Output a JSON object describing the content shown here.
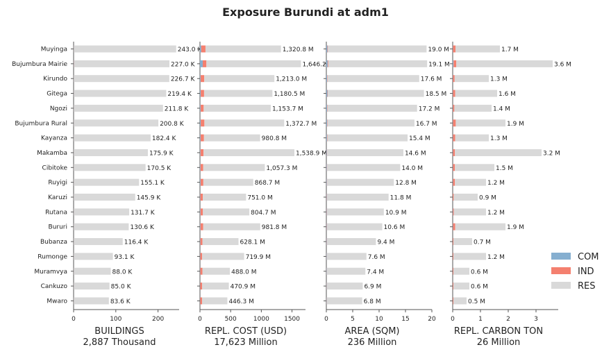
{
  "title": "Exposure Burundi at adm1",
  "chart_data": {
    "type": "bar",
    "orientation": "horizontal",
    "stacked": true,
    "categories": [
      "Muyinga",
      "Bujumbura Mairie",
      "Kirundo",
      "Gitega",
      "Ngozi",
      "Bujumbura Rural",
      "Kayanza",
      "Makamba",
      "Cibitoke",
      "Ruyigi",
      "Karuzi",
      "Rutana",
      "Bururi",
      "Bubanza",
      "Rumonge",
      "Muramvya",
      "Cankuzo",
      "Mwaro"
    ],
    "legend": {
      "position": "right",
      "entries": [
        {
          "name": "COM",
          "color": "#86afd0"
        },
        {
          "name": "IND",
          "color": "#f4806f"
        },
        {
          "name": "RES",
          "color": "#d9d9d9"
        }
      ]
    },
    "panels": [
      {
        "xlabel": "BUILDINGS",
        "total": "2,887 Thousand",
        "xlim": [
          0,
          250
        ],
        "xticks": [
          0,
          100,
          200
        ],
        "labels": [
          "243.0 K",
          "227.0 K",
          "226.7 K",
          "219.4 K",
          "211.8 K",
          "200.8 K",
          "182.4 K",
          "175.9 K",
          "170.5 K",
          "155.1 K",
          "145.9 K",
          "131.7 K",
          "130.6 K",
          "116.4 K",
          "93.1 K",
          "88.0 K",
          "85.0 K",
          "83.6 K"
        ],
        "series": [
          {
            "name": "COM",
            "values": [
              0.3,
              0.5,
              0.2,
              0.3,
              0.3,
              0.2,
              0.2,
              0.2,
              0.2,
              0.2,
              0.2,
              0.2,
              0.2,
              0.2,
              0.2,
              0.2,
              0.2,
              0.2
            ]
          },
          {
            "name": "IND",
            "values": [
              0.2,
              0.4,
              0.2,
              0.2,
              0.2,
              0.2,
              0.2,
              0.2,
              0.2,
              0.2,
              0.2,
              0.2,
              0.2,
              0.2,
              0.2,
              0.2,
              0.2,
              0.2
            ]
          },
          {
            "name": "RES",
            "values": [
              242.5,
              226.1,
              226.3,
              218.9,
              211.3,
              200.4,
              182.0,
              175.5,
              170.1,
              154.7,
              145.5,
              131.3,
              130.2,
              116.0,
              92.7,
              87.6,
              84.6,
              83.2
            ]
          }
        ]
      },
      {
        "xlabel": "REPL. COST (USD)",
        "total": "17,623 Million",
        "xlim": [
          0,
          1720
        ],
        "xticks": [
          0,
          500,
          1000,
          1500
        ],
        "labels": [
          "1,320.8 M",
          "1,646.2 M",
          "1,213.0 M",
          "1,180.5 M",
          "1,153.7 M",
          "1,372.7 M",
          "980.8 M",
          "1,538.9 M",
          "1,057.3 M",
          "868.7 M",
          "751.0 M",
          "804.7 M",
          "981.8 M",
          "628.1 M",
          "719.9 M",
          "488.0 M",
          "470.9 M",
          "446.3 M"
        ],
        "series": [
          {
            "name": "COM",
            "values": [
              20,
              45,
              10,
              12,
              10,
              12,
              10,
              8,
              8,
              10,
              6,
              8,
              8,
              6,
              5,
              5,
              4,
              4
            ]
          },
          {
            "name": "IND",
            "values": [
              70,
              60,
              60,
              55,
              50,
              60,
              55,
              50,
              45,
              45,
              40,
              40,
              45,
              35,
              30,
              35,
              30,
              30
            ]
          },
          {
            "name": "RES",
            "values": [
              1230.8,
              1541.2,
              1143.0,
              1113.5,
              1093.7,
              1300.7,
              915.8,
              1480.9,
              1004.3,
              813.7,
              705.0,
              756.7,
              928.8,
              587.1,
              684.9,
              448.0,
              436.9,
              412.3
            ]
          }
        ]
      },
      {
        "xlabel": "AREA (SQM)",
        "total": "236 Million",
        "xlim": [
          0,
          20
        ],
        "xticks": [
          0,
          5,
          10,
          15,
          20
        ],
        "labels": [
          "19.0 M",
          "19.1 M",
          "17.6 M",
          "18.5 M",
          "17.2 M",
          "16.7 M",
          "15.4 M",
          "14.6 M",
          "14.0 M",
          "12.8 M",
          "11.8 M",
          "10.9 M",
          "10.6 M",
          "9.4 M",
          "7.6 M",
          "7.4 M",
          "6.9 M",
          "6.8 M"
        ],
        "series": [
          {
            "name": "COM",
            "values": [
              0.2,
              0.25,
              0.15,
              0.2,
              0.15,
              0.15,
              0.12,
              0.1,
              0.1,
              0.1,
              0.08,
              0.08,
              0.08,
              0.07,
              0.06,
              0.06,
              0.05,
              0.05
            ]
          },
          {
            "name": "IND",
            "values": [
              0.1,
              0.12,
              0.08,
              0.08,
              0.08,
              0.08,
              0.07,
              0.06,
              0.06,
              0.06,
              0.05,
              0.05,
              0.05,
              0.05,
              0.04,
              0.04,
              0.04,
              0.04
            ]
          },
          {
            "name": "RES",
            "values": [
              18.7,
              18.73,
              17.37,
              18.22,
              16.97,
              16.47,
              15.21,
              14.44,
              13.84,
              12.64,
              11.67,
              10.77,
              10.47,
              9.28,
              7.5,
              7.3,
              6.81,
              6.71
            ]
          }
        ]
      },
      {
        "xlabel": "REPL. CARBON TON",
        "total": "26 Million",
        "xlim": [
          0,
          3.8
        ],
        "xticks": [
          0,
          1,
          2,
          3
        ],
        "labels": [
          "1.7 M",
          "3.6 M",
          "1.3 M",
          "1.6 M",
          "1.4 M",
          "1.9 M",
          "1.3 M",
          "3.2 M",
          "1.5 M",
          "1.2 M",
          "0.9 M",
          "1.2 M",
          "1.9 M",
          "0.7 M",
          "1.2 M",
          "0.6 M",
          "0.6 M",
          "0.5 M"
        ],
        "series": [
          {
            "name": "COM",
            "values": [
              0.01,
              0.03,
              0.01,
              0.01,
              0.01,
              0.01,
              0.01,
              0.01,
              0.01,
              0.01,
              0.005,
              0.01,
              0.01,
              0.005,
              0.005,
              0.005,
              0.005,
              0.005
            ]
          },
          {
            "name": "IND",
            "values": [
              0.09,
              0.1,
              0.06,
              0.08,
              0.05,
              0.1,
              0.08,
              0.07,
              0.07,
              0.07,
              0.03,
              0.03,
              0.08,
              0.02,
              0.02,
              0.02,
              0.02,
              0.02
            ]
          },
          {
            "name": "RES",
            "values": [
              1.6,
              3.47,
              1.23,
              1.51,
              1.34,
              1.79,
              1.21,
              3.12,
              1.42,
              1.12,
              0.865,
              1.16,
              1.81,
              0.675,
              1.175,
              0.575,
              0.575,
              0.475
            ]
          }
        ]
      }
    ]
  }
}
